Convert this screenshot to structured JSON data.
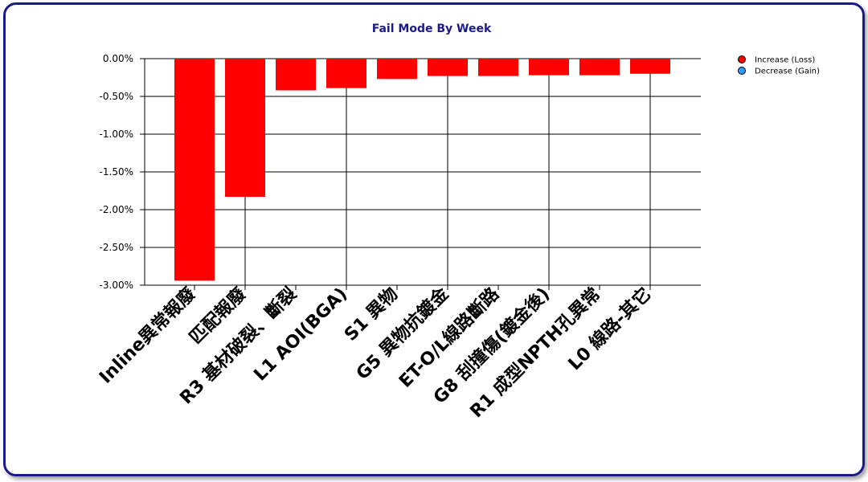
{
  "chart_data": {
    "type": "bar",
    "title": "Fail Mode By Week",
    "categories": [
      "Inline異常報廢",
      "匹配報廢",
      "R3 基材破裂、斷裂",
      "L1 AOI(BGA)",
      "S1 異物",
      "G5 異物抗鍍金",
      "ET-O/L線路斷路",
      "G8 刮撞傷(鍍金後)",
      "R1 成型NPTH孔異常",
      "L0 線路-其它"
    ],
    "values": [
      -2.94,
      -1.83,
      -0.42,
      -0.39,
      -0.27,
      -0.23,
      -0.23,
      -0.22,
      -0.22,
      -0.2
    ],
    "ylim": [
      -3.0,
      0.0
    ],
    "yticks": [
      0.0,
      -0.5,
      -1.0,
      -1.5,
      -2.0,
      -2.5,
      -3.0
    ],
    "ytick_labels": [
      "0.00%",
      "-0.50%",
      "-1.00%",
      "-1.50%",
      "-2.00%",
      "-2.50%",
      "-3.00%"
    ],
    "xlabel": "",
    "ylabel": "",
    "grid": true,
    "legend": {
      "position": "top-right",
      "entries": [
        {
          "label": "Increase (Loss)",
          "color": "#ff0000"
        },
        {
          "label": "Decrease (Gain)",
          "color": "#3399ff"
        }
      ]
    },
    "colors": {
      "bar": "#ff0000",
      "title": "#1a1a8c",
      "frame": "#1a1a8c"
    }
  }
}
